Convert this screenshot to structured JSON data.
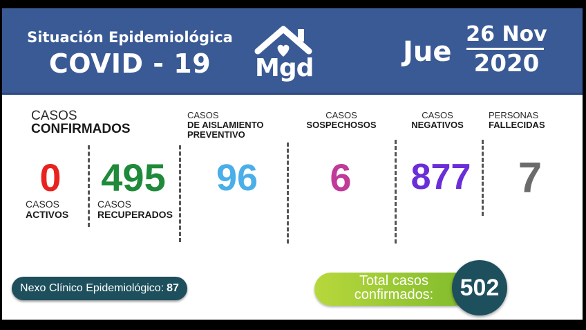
{
  "header": {
    "line1": "Situación Epidemiológica",
    "line2": "COVID - 19",
    "logo_text": "Mgd",
    "logo_icon": "house-heart-icon",
    "day": "Jue",
    "date_top": "26 Nov",
    "date_bottom": "2020"
  },
  "stats": {
    "confirmados": {
      "l1": "CASOS",
      "l2": "CONFIRMADOS"
    },
    "activos": {
      "l1": "CASOS",
      "l2": "ACTIVOS",
      "value": "0"
    },
    "recuperados": {
      "l1": "CASOS",
      "l2": "RECUPERADOS",
      "value": "495"
    },
    "aislamiento": {
      "l1": "CASOS",
      "l2": "DE AISLAMIENTO",
      "l3": "PREVENTIVO",
      "value": "96"
    },
    "sospechosos": {
      "l1": "CASOS",
      "l2": "SOSPECHOSOS",
      "value": "6"
    },
    "negativos": {
      "l1": "CASOS",
      "l2": "NEGATIVOS",
      "value": "877"
    },
    "fallecidas": {
      "l1": "PERSONAS",
      "l2": "FALLECIDAS",
      "value": "7"
    }
  },
  "nexo": {
    "label": "Nexo Clínico Epidemiológico:",
    "value": "87"
  },
  "total": {
    "line1": "Total casos",
    "line2": "confirmados:",
    "value": "502"
  },
  "colors": {
    "header_bg": "#3a5a95",
    "activos": "#e8231f",
    "recuperados": "#1e8a3a",
    "aislamiento": "#4aaee8",
    "sospechosos": "#c03a9a",
    "negativos": "#6a2ed8",
    "fallecidas": "#6b6b6b",
    "nexo_bg": "#1d4f5d",
    "total_pill": "#9cc834"
  }
}
